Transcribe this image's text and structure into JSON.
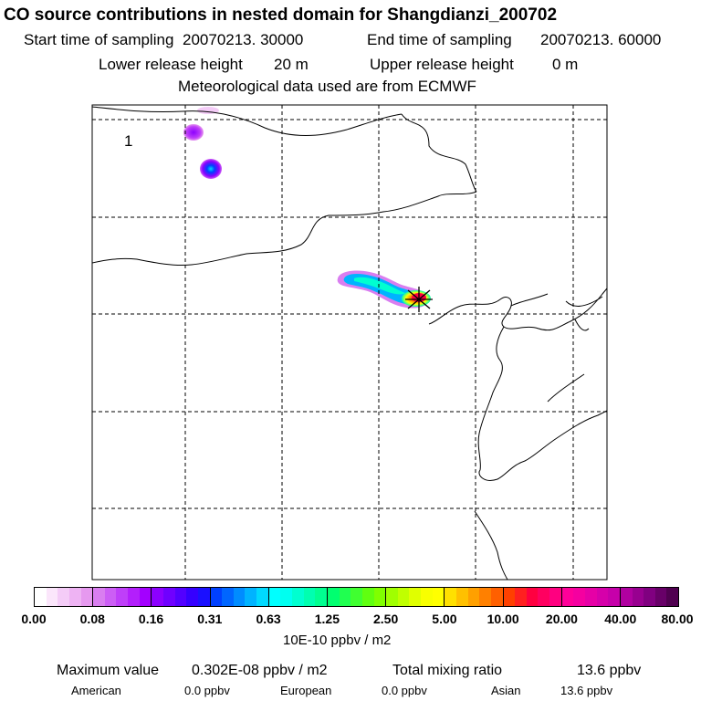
{
  "header": {
    "title": "CO  source contributions in nested domain for Shangdianzi_200702",
    "start_label": "Start time of sampling",
    "start_value": "20070213. 30000",
    "end_label": "End time of sampling",
    "end_value": "20070213. 60000",
    "lower_label": "Lower release height",
    "lower_value": "20 m",
    "upper_label": "Upper release height",
    "upper_value": "0 m",
    "met_text": "Meteorological data used are from ECMWF"
  },
  "map": {
    "panel_label": "1"
  },
  "colorbar": {
    "ticks": [
      "0.00",
      "0.08",
      "0.16",
      "0.31",
      "0.63",
      "1.25",
      "2.50",
      "5.00",
      "10.00",
      "20.00",
      "40.00",
      "80.00"
    ],
    "colors": [
      [
        "#ffffff",
        "#fbe6fb",
        "#f4ccf7",
        "#eeb3f3",
        "#e699ef"
      ],
      [
        "#d97ef0",
        "#cc5ef5",
        "#bf3ff9",
        "#b31ffc",
        "#a300ff"
      ],
      [
        "#8c00ff",
        "#6f00ff",
        "#5200ff",
        "#3500ff",
        "#1a10ff"
      ],
      [
        "#0040ff",
        "#0066ff",
        "#008cff",
        "#00b3ff",
        "#00d9ff"
      ],
      [
        "#00ffff",
        "#00fff0",
        "#00ffd0",
        "#00ffb0",
        "#00ff90"
      ],
      [
        "#00ff70",
        "#20ff50",
        "#40ff30",
        "#60ff10",
        "#80ff00"
      ],
      [
        "#a0ff00",
        "#c0ff00",
        "#e0ff00",
        "#f8ff00",
        "#ffff00"
      ],
      [
        "#ffe000",
        "#ffc000",
        "#ffa000",
        "#ff8000",
        "#ff6000"
      ],
      [
        "#ff4000",
        "#ff2020",
        "#ff0040",
        "#ff0060",
        "#ff0080"
      ],
      [
        "#ff0099",
        "#f500a0",
        "#e600a6",
        "#d600aa",
        "#c600aa"
      ],
      [
        "#b000a0",
        "#980090",
        "#800080",
        "#680068",
        "#500050"
      ]
    ],
    "unit": "10E-10 ppbv / m2"
  },
  "footer": {
    "max_label": "Maximum value",
    "max_value": "0.302E-08 ppbv / m2",
    "total_label": "Total mixing ratio",
    "total_value": "13.6 ppbv",
    "american_label": "American",
    "american_value": "0.0 ppbv",
    "european_label": "European",
    "european_value": "0.0 ppbv",
    "asian_label": "Asian",
    "asian_value": "13.6 ppbv"
  }
}
